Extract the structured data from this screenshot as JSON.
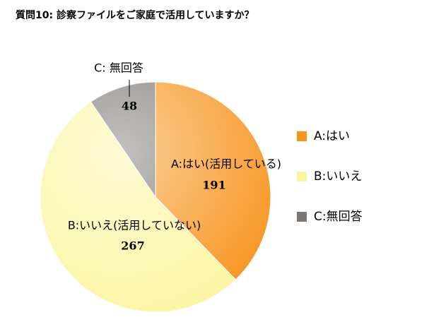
{
  "chart_data": {
    "type": "pie",
    "title": "質問10: 診察ファイルをご家庭で活用していますか？",
    "categories": [
      "A:はい",
      "B:いいえ",
      "C:無回答"
    ],
    "slice_labels": [
      "A:はい(活用している)",
      "B:いいえ(活用していない)",
      "C: 無回答"
    ],
    "values": [
      191,
      267,
      48
    ],
    "colors": [
      "#f7941d",
      "#fbf5a0",
      "#7a7672"
    ],
    "legend": "right"
  }
}
